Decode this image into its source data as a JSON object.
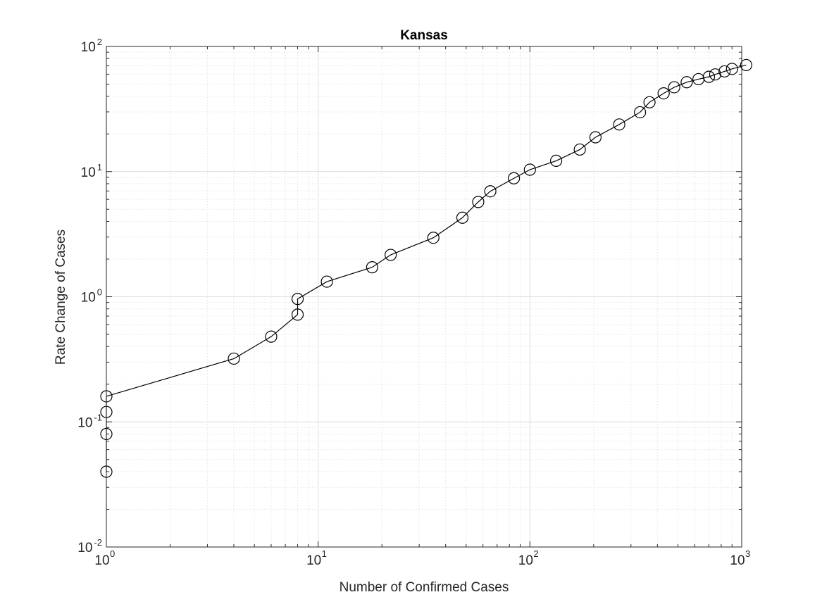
{
  "chart_data": {
    "type": "line",
    "title": "Kansas",
    "xlabel": "Number of Confirmed Cases",
    "ylabel": "Rate Change of Cases",
    "xscale": "log",
    "yscale": "log",
    "xlim": [
      1,
      1000
    ],
    "ylim": [
      0.01,
      100
    ],
    "grid": true,
    "minor_grid": true,
    "legend": "none",
    "marker": "open-circle",
    "color": "#000000",
    "x_ticks": [
      {
        "base": "10",
        "exp": "0"
      },
      {
        "base": "10",
        "exp": "1"
      },
      {
        "base": "10",
        "exp": "2"
      },
      {
        "base": "10",
        "exp": "3"
      }
    ],
    "y_ticks": [
      {
        "base": "10",
        "exp": "-2"
      },
      {
        "base": "10",
        "exp": "-1"
      },
      {
        "base": "10",
        "exp": "0"
      },
      {
        "base": "10",
        "exp": "1"
      },
      {
        "base": "10",
        "exp": "2"
      }
    ],
    "series": [
      {
        "x": [
          1,
          1,
          1,
          1,
          4,
          6,
          8,
          8,
          11,
          18,
          22,
          35,
          48,
          57,
          65,
          84,
          100,
          133,
          172,
          204,
          264,
          331,
          367,
          428,
          480,
          550,
          625,
          700,
          750,
          830,
          900,
          1050
        ],
        "y": [
          0.04,
          0.08,
          0.12,
          0.16,
          0.32,
          0.48,
          0.72,
          0.96,
          1.32,
          1.72,
          2.16,
          2.96,
          4.28,
          5.72,
          6.96,
          8.84,
          10.36,
          12.2,
          15.0,
          18.8,
          23.8,
          29.8,
          35.8,
          42.2,
          47.2,
          51.8,
          54.8,
          57.2,
          59.8,
          63.2,
          66.2,
          71.0
        ]
      }
    ]
  }
}
